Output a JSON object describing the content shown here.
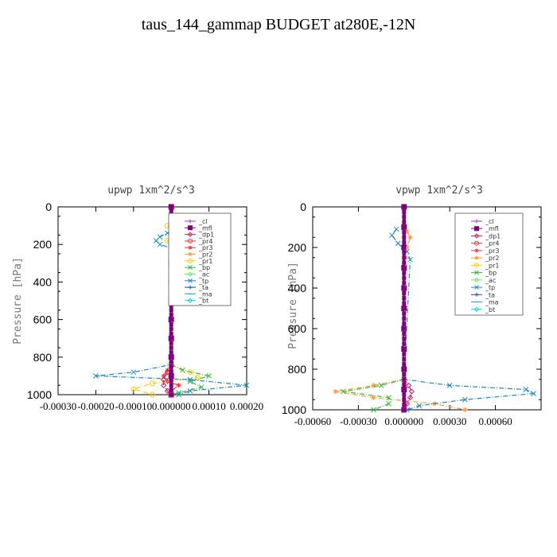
{
  "page_title": "taus_144_gammap  BUDGET at280E,-12N",
  "legend_entries": [
    {
      "label": "_cl",
      "color": "#9933cc",
      "marker": "plus"
    },
    {
      "label": "_mfl",
      "color": "#800080",
      "marker": "square"
    },
    {
      "label": "_dp1",
      "color": "#d21e5a",
      "marker": "diamond"
    },
    {
      "label": "_pr4",
      "color": "#e8323c",
      "marker": "circle"
    },
    {
      "label": "_pr3",
      "color": "#ff3333",
      "marker": "star"
    },
    {
      "label": "_pr2",
      "color": "#ff9933",
      "marker": "star"
    },
    {
      "label": "_pr1",
      "color": "#ffcc00",
      "marker": "circle"
    },
    {
      "label": "_bp",
      "color": "#33bb33",
      "marker": "x"
    },
    {
      "label": "_ac",
      "color": "#66ee66",
      "marker": "diamond"
    },
    {
      "label": "_tp",
      "color": "#1a88cc",
      "marker": "x"
    },
    {
      "label": "_ta",
      "color": "#1a3fcc",
      "marker": "plus"
    },
    {
      "label": "_ma",
      "color": "#00aaff",
      "marker": "dash"
    },
    {
      "label": "_bt",
      "color": "#00dddd",
      "marker": "diamond"
    }
  ],
  "chart_data": [
    {
      "type": "line",
      "title": "upwp   1xm^2/s^3",
      "ylabel": "Pressure [hPa]",
      "xlim": [
        -0.0003,
        0.0002
      ],
      "ylim": [
        1000,
        0
      ],
      "x_tick_labels": [
        "-0.00030",
        "-0.00020",
        "-0.00010",
        "0.000000",
        "0.00010",
        "0.00020"
      ],
      "x_tick_values": [
        -0.0003,
        -0.0002,
        -0.0001,
        0,
        0.0001,
        0.0002
      ],
      "y_tick_labels": [
        "0",
        "200",
        "400",
        "600",
        "800",
        "1000"
      ],
      "y_tick_values": [
        0,
        200,
        400,
        600,
        800,
        1000
      ],
      "legend_position": "top-right",
      "series": [
        {
          "name": "_cl",
          "color": "#9933cc",
          "y": [
            0,
            100,
            200,
            300,
            400,
            500,
            600,
            700,
            800,
            900,
            1000
          ],
          "x": [
            0,
            0,
            0,
            0,
            0,
            0,
            0,
            0,
            0,
            0,
            0
          ]
        },
        {
          "name": "_mfl",
          "color": "#800080",
          "y": [
            0,
            100,
            200,
            300,
            400,
            500,
            600,
            700,
            800,
            900,
            1000
          ],
          "x": [
            0,
            0,
            0,
            0,
            0,
            0,
            0,
            0,
            0,
            0,
            0
          ]
        },
        {
          "name": "_pr3",
          "color": "#ff3333",
          "y": [
            840,
            870,
            900,
            930,
            950,
            980,
            1000
          ],
          "x": [
            0,
            -1e-05,
            -2e-05,
            -1e-05,
            2e-05,
            0,
            0
          ]
        },
        {
          "name": "_pr1",
          "color": "#ffcc00",
          "y": [
            100,
            140,
            180,
            220,
            840,
            880,
            910,
            940,
            970,
            1000
          ],
          "x": [
            -1e-05,
            1e-05,
            -1e-05,
            1e-05,
            0,
            5e-05,
            7e-05,
            -5e-05,
            -0.0001,
            -5e-05
          ]
        },
        {
          "name": "_bp",
          "color": "#33bb33",
          "y": [
            840,
            870,
            900,
            930,
            960,
            990,
            1000
          ],
          "x": [
            0,
            3e-05,
            0.0001,
            5e-05,
            8e-05,
            2e-05,
            0
          ]
        },
        {
          "name": "_tp",
          "color": "#1a88cc",
          "y": [
            80,
            110,
            140,
            160,
            180,
            200,
            220,
            840,
            880,
            900,
            920,
            950,
            980,
            1000
          ],
          "x": [
            0,
            2e-05,
            -1e-05,
            -3e-05,
            -4e-05,
            -3e-05,
            0,
            0,
            -0.0001,
            -0.0002,
            5e-05,
            0.0002,
            5e-05,
            2e-05
          ]
        },
        {
          "name": "_dp1",
          "color": "#d21e5a",
          "y": [
            840,
            880,
            920,
            950,
            980,
            1000
          ],
          "x": [
            0,
            -1e-05,
            -2e-05,
            -2e-05,
            -1e-05,
            0
          ]
        }
      ]
    },
    {
      "type": "line",
      "title": "vpwp   1xm^2/s^3",
      "ylabel": "Pressure [hPa]",
      "xlim": [
        -0.0006,
        0.0009
      ],
      "ylim": [
        1000,
        0
      ],
      "x_tick_labels": [
        "-0.00060",
        "-0.00030",
        "0.000000",
        "0.00030",
        "0.00060"
      ],
      "x_tick_values": [
        -0.0006,
        -0.0003,
        0,
        0.0003,
        0.0006
      ],
      "y_tick_labels": [
        "0",
        "200",
        "400",
        "600",
        "800",
        "1000"
      ],
      "y_tick_values": [
        0,
        200,
        400,
        600,
        800,
        1000
      ],
      "legend_position": "top-right",
      "series": [
        {
          "name": "_cl",
          "color": "#9933cc",
          "y": [
            0,
            100,
            200,
            300,
            400,
            500,
            600,
            700,
            800,
            900,
            1000
          ],
          "x": [
            0,
            0,
            0,
            0,
            0,
            0,
            0,
            0,
            0,
            0,
            0
          ]
        },
        {
          "name": "_mfl",
          "color": "#800080",
          "y": [
            0,
            100,
            200,
            300,
            400,
            500,
            600,
            700,
            800,
            900,
            1000
          ],
          "x": [
            0,
            0,
            0,
            0,
            0,
            0,
            0,
            0,
            0,
            0,
            0
          ]
        },
        {
          "name": "_pr2",
          "color": "#ff9933",
          "y": [
            120,
            150,
            200,
            250,
            850,
            880,
            910,
            940,
            970,
            1000
          ],
          "x": [
            2e-05,
            4e-05,
            2e-05,
            1e-05,
            0,
            -0.0002,
            -0.00045,
            -0.0002,
            0.0002,
            0.0004
          ]
        },
        {
          "name": "_bp",
          "color": "#33bb33",
          "y": [
            850,
            880,
            910,
            940,
            970,
            1000
          ],
          "x": [
            0,
            -0.00015,
            -0.0004,
            -0.0001,
            -0.0001,
            -0.0002
          ]
        },
        {
          "name": "_tp",
          "color": "#1a88cc",
          "y": [
            110,
            140,
            180,
            220,
            260,
            850,
            880,
            900,
            920,
            950,
            980,
            1000
          ],
          "x": [
            -5e-05,
            -8e-05,
            -4e-05,
            2e-05,
            4e-05,
            0,
            0.0003,
            0.0008,
            0.00085,
            0.0004,
            0.0001,
            2e-05
          ]
        },
        {
          "name": "_dp1",
          "color": "#d21e5a",
          "y": [
            850,
            880,
            910,
            940,
            970,
            1000
          ],
          "x": [
            0,
            3e-05,
            5e-05,
            4e-05,
            2e-05,
            0
          ]
        }
      ]
    }
  ]
}
